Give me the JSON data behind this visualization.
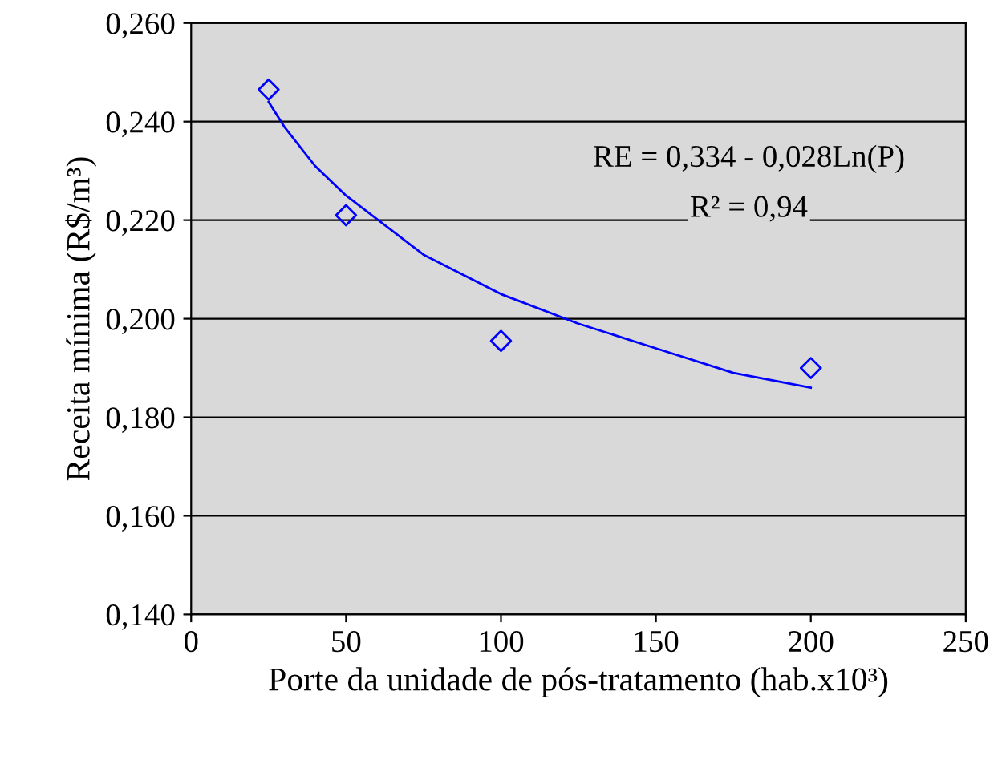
{
  "chart_data": {
    "type": "scatter",
    "xlabel": "Porte da unidade de pós-tratamento (hab.x10³)",
    "ylabel": "Receita mínima (R$/m³)",
    "annotations": [
      "RE = 0,334 - 0,028Ln(P)",
      "R² = 0,94"
    ],
    "series": [
      {
        "color": "#0000ff",
        "marker": "diamond",
        "x": [
          25,
          50,
          100,
          200
        ],
        "values": [
          0.2465,
          0.221,
          0.1955,
          0.19
        ]
      },
      {
        "type": "line",
        "color": "#0000ff",
        "marker": "none",
        "x": [
          25,
          30,
          40,
          50,
          75,
          100,
          125,
          150,
          175,
          200
        ],
        "values": [
          0.244,
          0.239,
          0.231,
          0.225,
          0.213,
          0.205,
          0.199,
          0.194,
          0.189,
          0.186
        ]
      }
    ],
    "xlim": [
      0,
      250
    ],
    "xticks": [
      0,
      50,
      100,
      150,
      200,
      250
    ],
    "ylim": [
      0.14,
      0.26
    ],
    "yticks": [
      {
        "value": 0.14,
        "label": "0,140"
      },
      {
        "value": 0.16,
        "label": "0,160"
      },
      {
        "value": 0.18,
        "label": "0,180"
      },
      {
        "value": 0.2,
        "label": "0,200"
      },
      {
        "value": 0.22,
        "label": "0,220"
      },
      {
        "value": 0.24,
        "label": "0,240"
      },
      {
        "value": 0.26,
        "label": "0,260"
      }
    ],
    "grid": "y",
    "legend": false
  }
}
